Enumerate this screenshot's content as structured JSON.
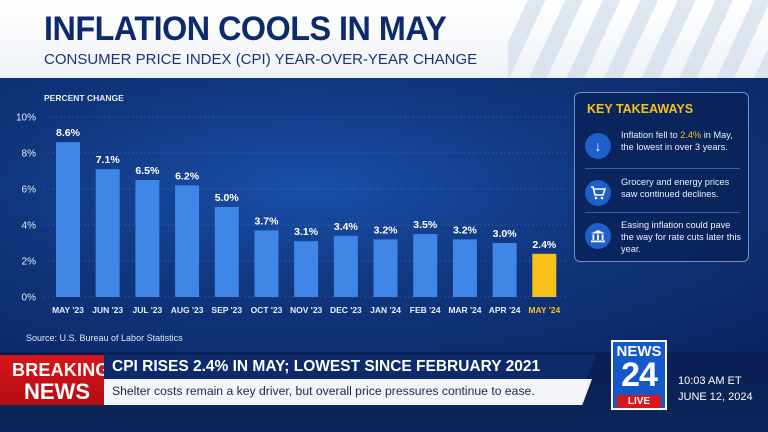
{
  "header": {
    "title": "INFLATION COOLS IN MAY",
    "subtitle": "CONSUMER PRICE INDEX (CPI) YEAR-OVER-YEAR CHANGE"
  },
  "chart_data": {
    "type": "bar",
    "ylabel": "PERCENT CHANGE",
    "ylim": [
      0,
      10
    ],
    "yticks": [
      "0%",
      "2%",
      "4%",
      "6%",
      "8%",
      "10%"
    ],
    "grid": true,
    "categories": [
      "MAY '23",
      "JUN '23",
      "JUL '23",
      "AUG '23",
      "SEP '23",
      "OCT '23",
      "NOV '23",
      "DEC '23",
      "JAN '24",
      "FEB '24",
      "MAR '24",
      "APR '24",
      "MAY '24"
    ],
    "values": [
      8.6,
      7.1,
      6.5,
      6.2,
      5.0,
      3.7,
      3.1,
      3.4,
      3.2,
      3.5,
      3.2,
      3.0,
      2.4
    ],
    "value_labels": [
      "8.6%",
      "7.1%",
      "6.5%",
      "6.2%",
      "5.0%",
      "3.7%",
      "3.1%",
      "3.4%",
      "3.2%",
      "3.5%",
      "3.2%",
      "3.0%",
      "2.4%"
    ],
    "highlight_index": 12,
    "bar_color": "#3f86e6",
    "highlight_color": "#f6c21a"
  },
  "source": "Source: U.S. Bureau of Labor Statistics",
  "takeaways": {
    "title": "KEY TAKEAWAYS",
    "items": [
      {
        "icon": "arrow-down-icon",
        "text_pre": "Inflation fell to ",
        "highlight": "2.4%",
        "text_post": " in May, the lowest in over 3 years."
      },
      {
        "icon": "shopping-cart-icon",
        "text": "Grocery and energy prices saw continued declines."
      },
      {
        "icon": "bank-icon",
        "text": "Easing inflation could pave the way for rate cuts later this year."
      }
    ]
  },
  "ticker": {
    "breaking_1": "BREAKING",
    "breaking_2": "NEWS",
    "headline": "CPI RISES 2.4% IN MAY; LOWEST SINCE FEBRUARY 2021",
    "subline": "Shelter costs remain a key driver, but overall price pressures continue to ease.",
    "logo_top": "NEWS",
    "logo_num": "24",
    "logo_live": "LIVE",
    "time": "10:03 AM ET",
    "date": "JUNE 12, 2024"
  }
}
